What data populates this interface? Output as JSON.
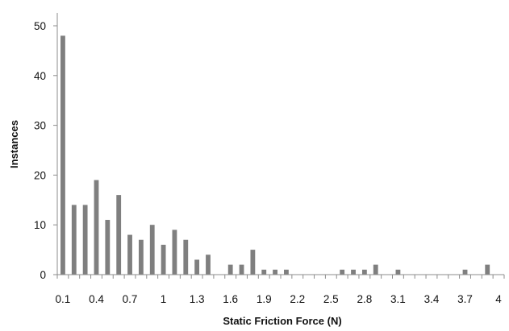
{
  "chart_data": {
    "type": "bar",
    "title": "",
    "xlabel": "Static Friction Force (N)",
    "ylabel": "Instances",
    "ylim": [
      0,
      50
    ],
    "yticks": [
      0,
      10,
      20,
      30,
      40,
      50
    ],
    "xtick_labels": [
      "0.1",
      "0.4",
      "0.7",
      "1",
      "1.3",
      "1.6",
      "1.9",
      "2.2",
      "2.5",
      "2.8",
      "3.1",
      "3.4",
      "3.7",
      "4"
    ],
    "grid": false,
    "bar_color": "#7f7f7f",
    "categories": [
      "0.1",
      "0.2",
      "0.3",
      "0.4",
      "0.5",
      "0.6",
      "0.7",
      "0.8",
      "0.9",
      "1",
      "1.1",
      "1.2",
      "1.3",
      "1.4",
      "1.5",
      "1.6",
      "1.7",
      "1.8",
      "1.9",
      "2",
      "2.1",
      "2.2",
      "2.3",
      "2.4",
      "2.5",
      "2.6",
      "2.7",
      "2.8",
      "2.9",
      "3",
      "3.1",
      "3.2",
      "3.3",
      "3.4",
      "3.5",
      "3.6",
      "3.7",
      "3.8",
      "3.9",
      "4"
    ],
    "values": [
      48,
      14,
      14,
      19,
      11,
      16,
      8,
      7,
      10,
      6,
      9,
      7,
      3,
      4,
      0,
      2,
      2,
      5,
      1,
      1,
      1,
      0,
      0,
      0,
      0,
      1,
      1,
      1,
      2,
      0,
      1,
      0,
      0,
      0,
      0,
      0,
      1,
      0,
      2,
      0
    ]
  }
}
